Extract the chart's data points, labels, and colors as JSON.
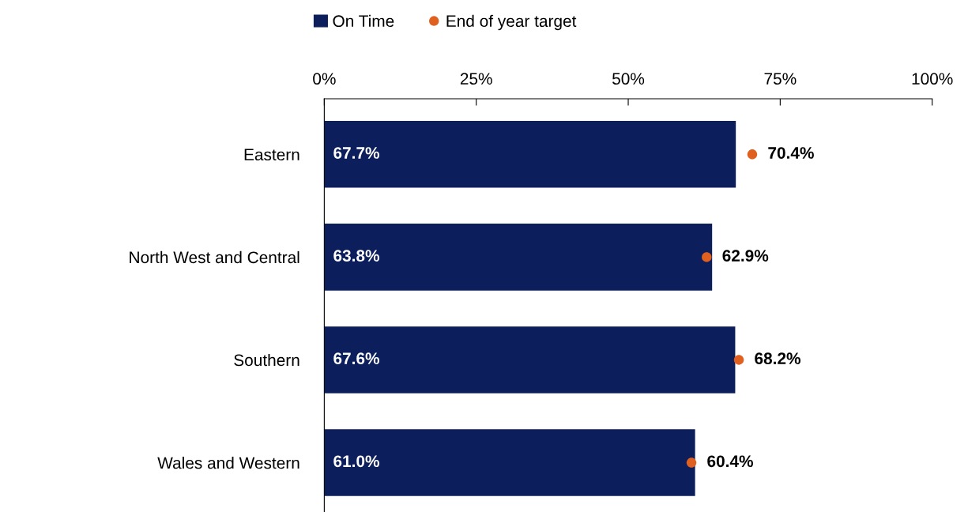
{
  "chart_data": {
    "type": "bar",
    "orientation": "horizontal",
    "categories": [
      "Eastern",
      "North West and Central",
      "Southern",
      "Wales and Western"
    ],
    "series": [
      {
        "name": "On Time",
        "color": "#0c1e5b",
        "values": [
          67.7,
          63.8,
          67.6,
          61.0
        ],
        "value_labels": [
          "67.7%",
          "63.8%",
          "67.6%",
          "61.0%"
        ]
      },
      {
        "name": "End of year target",
        "type": "scatter",
        "color": "#e0601f",
        "values": [
          70.4,
          62.9,
          68.2,
          60.4
        ],
        "value_labels": [
          "70.4%",
          "62.9%",
          "68.2%",
          "60.4%"
        ]
      }
    ],
    "xlim": [
      0,
      100
    ],
    "xticks": [
      {
        "value": 0,
        "label": "0%"
      },
      {
        "value": 25,
        "label": "25%"
      },
      {
        "value": 50,
        "label": "50%"
      },
      {
        "value": 75,
        "label": "75%"
      },
      {
        "value": 100,
        "label": "100%"
      }
    ],
    "legend": "top",
    "grid": false,
    "marker": "circle"
  }
}
